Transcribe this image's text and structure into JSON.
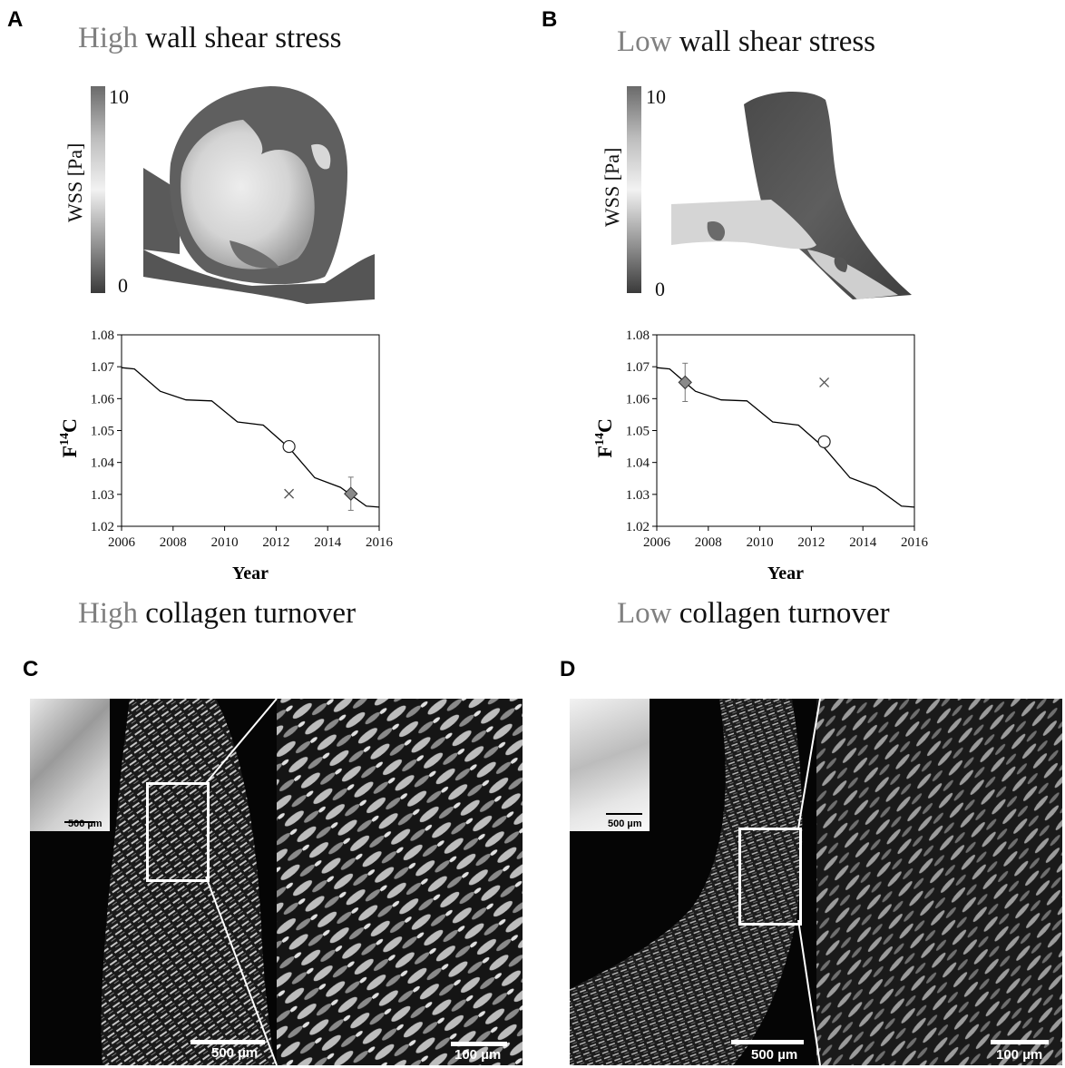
{
  "panels": {
    "A": {
      "letter": "A",
      "top_heading": {
        "highlight": "High",
        "rest": " wall shear stress"
      },
      "colorbar": {
        "label": "WSS [Pa]",
        "max": "10",
        "min": "0"
      },
      "bottom_heading": {
        "highlight": "High",
        "rest": " collagen turnover"
      }
    },
    "B": {
      "letter": "B",
      "top_heading": {
        "highlight": "Low",
        "rest": " wall shear stress"
      },
      "colorbar": {
        "label": "WSS [Pa]",
        "max": "10",
        "min": "0"
      },
      "bottom_heading": {
        "highlight": "Low",
        "rest": " collagen turnover"
      }
    },
    "C": {
      "letter": "C",
      "inset_scale": "500 µm",
      "main_scale": "500 µm",
      "zoom_scale": "100 µm"
    },
    "D": {
      "letter": "D",
      "inset_scale": "500 µm",
      "main_scale": "500 µm",
      "zoom_scale": "100 µm"
    }
  },
  "colors": {
    "highlight_text": "#808080",
    "diamond_fill": "#8a8a8a",
    "curve": "#000000"
  },
  "chart_data": [
    {
      "type": "line",
      "panel": "A",
      "xlabel": "Year",
      "ylabel_main": "F",
      "ylabel_sup": "14",
      "ylabel_tail": "C",
      "xlim": [
        2006,
        2016
      ],
      "ylim": [
        1.02,
        1.08
      ],
      "xticks": [
        "2006",
        "2008",
        "2010",
        "2012",
        "2014",
        "2016"
      ],
      "yticks": [
        "1.02",
        "1.03",
        "1.04",
        "1.05",
        "1.06",
        "1.07",
        "1.08"
      ],
      "bomb_curve": {
        "x": [
          2006,
          2006.5,
          2007.5,
          2008.5,
          2009.5,
          2010.5,
          2011.5,
          2012.5,
          2013.5,
          2014.5,
          2015.5,
          2016
        ],
        "y": [
          1.0697,
          1.0693,
          1.0623,
          1.0596,
          1.0593,
          1.0527,
          1.0517,
          1.0446,
          1.0352,
          1.0322,
          1.0263,
          1.026
        ]
      },
      "markers": [
        {
          "kind": "circle",
          "x": 2012.5,
          "y": 1.045
        },
        {
          "kind": "cross",
          "x": 2012.5,
          "y": 1.0302
        },
        {
          "kind": "diamond",
          "x": 2014.9,
          "y": 1.0302,
          "err": 0.0052
        }
      ]
    },
    {
      "type": "line",
      "panel": "B",
      "xlabel": "Year",
      "ylabel_main": "F",
      "ylabel_sup": "14",
      "ylabel_tail": "C",
      "xlim": [
        2006,
        2016
      ],
      "ylim": [
        1.02,
        1.08
      ],
      "xticks": [
        "2006",
        "2008",
        "2010",
        "2012",
        "2014",
        "2016"
      ],
      "yticks": [
        "1.02",
        "1.03",
        "1.04",
        "1.05",
        "1.06",
        "1.07",
        "1.08"
      ],
      "bomb_curve": {
        "x": [
          2006,
          2006.5,
          2007.5,
          2008.5,
          2009.5,
          2010.5,
          2011.5,
          2012.5,
          2013.5,
          2014.5,
          2015.5,
          2016
        ],
        "y": [
          1.0697,
          1.0693,
          1.0623,
          1.0596,
          1.0593,
          1.0527,
          1.0517,
          1.0446,
          1.0352,
          1.0322,
          1.0263,
          1.026
        ]
      },
      "markers": [
        {
          "kind": "diamond",
          "x": 2007.1,
          "y": 1.0651,
          "err": 0.006
        },
        {
          "kind": "cross",
          "x": 2012.5,
          "y": 1.0651
        },
        {
          "kind": "circle",
          "x": 2012.5,
          "y": 1.0465
        }
      ]
    }
  ]
}
